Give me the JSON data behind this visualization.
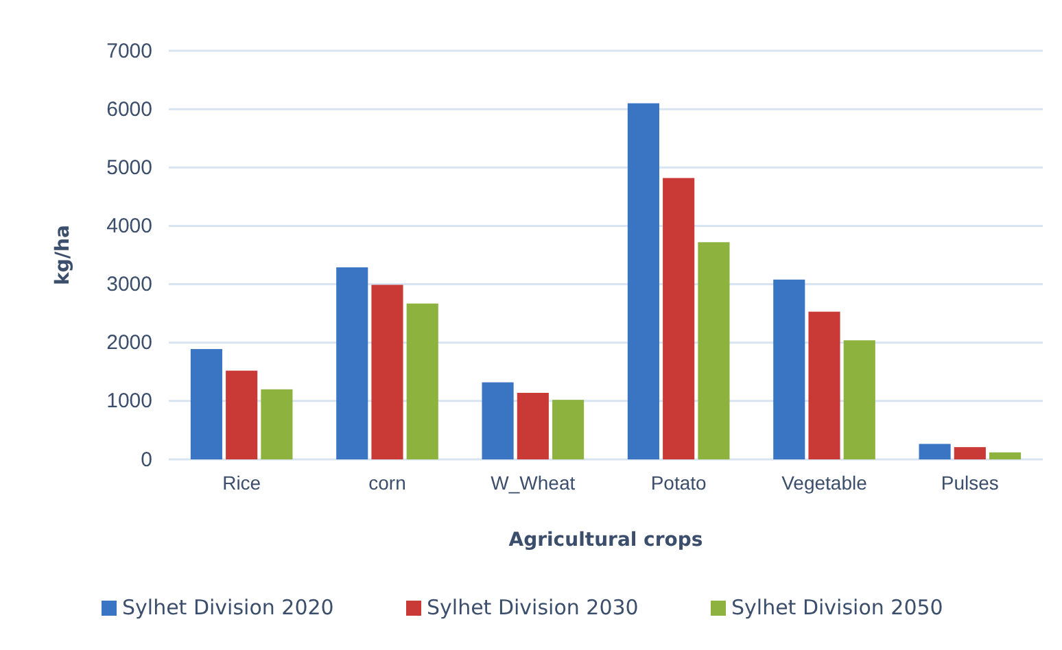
{
  "chart_data": {
    "type": "bar",
    "xlabel": "Agricultural crops",
    "ylabel": "kg/ha",
    "categories": [
      "Rice",
      "corn",
      "W_Wheat",
      "Potato",
      "Vegetable",
      "Pulses"
    ],
    "series": [
      {
        "name": "Sylhet Division 2020",
        "color": "#3a75c4",
        "values": [
          1890,
          3290,
          1320,
          6100,
          3080,
          265
        ]
      },
      {
        "name": "Sylhet Division 2030",
        "color": "#c93a36",
        "values": [
          1520,
          2990,
          1140,
          4820,
          2530,
          210
        ]
      },
      {
        "name": "Sylhet Division 2050",
        "color": "#8db33e",
        "values": [
          1200,
          2670,
          1020,
          3720,
          2040,
          120
        ]
      }
    ],
    "ylim": [
      0,
      7000
    ],
    "yticks": [
      0,
      1000,
      2000,
      3000,
      4000,
      5000,
      6000,
      7000
    ],
    "grid": "y",
    "legend": "bottom"
  }
}
